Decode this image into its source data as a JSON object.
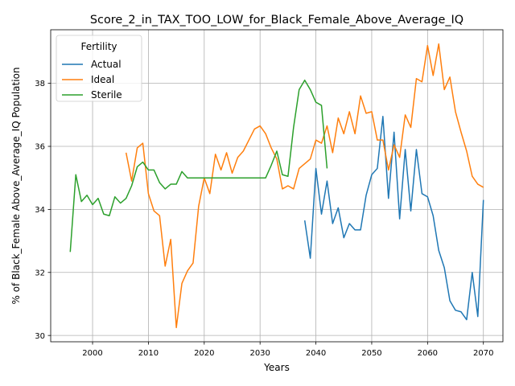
{
  "chart_data": {
    "type": "line",
    "title": "Score_2_in_TAX_TOO_LOW_for_Black_Female_Above_Average_IQ",
    "xlabel": "Years",
    "ylabel": "% of Black_Female Above_Average_IQ Population",
    "xlim": [
      1992.5,
      2073.5
    ],
    "ylim": [
      29.8,
      39.7
    ],
    "xticks": [
      2000,
      2010,
      2020,
      2030,
      2040,
      2050,
      2060,
      2070
    ],
    "yticks": [
      30,
      32,
      34,
      36,
      38
    ],
    "grid": true,
    "legend": {
      "title": "Fertility",
      "placement": "top-left"
    },
    "series": [
      {
        "name": "Actual",
        "color": "#1f77b4",
        "x": [
          2038,
          2039,
          2040,
          2041,
          2042,
          2043,
          2044,
          2045,
          2046,
          2047,
          2048,
          2049,
          2050,
          2051,
          2052,
          2053,
          2054,
          2055,
          2056,
          2057,
          2058,
          2059,
          2060,
          2061,
          2062,
          2063,
          2064,
          2065,
          2066,
          2067,
          2068,
          2069,
          2070
        ],
        "y": [
          33.65,
          32.45,
          35.3,
          33.85,
          34.9,
          33.55,
          34.05,
          33.1,
          33.55,
          33.35,
          33.35,
          34.45,
          35.1,
          35.3,
          36.95,
          34.35,
          36.45,
          33.7,
          35.9,
          33.95,
          35.9,
          34.5,
          34.4,
          33.8,
          32.7,
          32.15,
          31.1,
          30.8,
          30.75,
          30.5,
          32.0,
          30.6,
          34.3
        ]
      },
      {
        "name": "Ideal",
        "color": "#ff7f0e",
        "x": [
          2006,
          2007,
          2008,
          2009,
          2010,
          2011,
          2012,
          2013,
          2014,
          2015,
          2016,
          2017,
          2018,
          2019,
          2020,
          2021,
          2022,
          2023,
          2024,
          2025,
          2026,
          2027,
          2028,
          2029,
          2030,
          2031,
          2032,
          2033,
          2034,
          2035,
          2036,
          2037,
          2038,
          2039,
          2040,
          2041,
          2042,
          2043,
          2044,
          2045,
          2046,
          2047,
          2048,
          2049,
          2050,
          2051,
          2052,
          2053,
          2054,
          2055,
          2056,
          2057,
          2058,
          2059,
          2060,
          2061,
          2062,
          2063,
          2064,
          2065,
          2066,
          2067,
          2068,
          2069,
          2070
        ],
        "y": [
          35.8,
          34.9,
          35.95,
          36.1,
          34.5,
          33.95,
          33.8,
          32.2,
          33.05,
          30.25,
          31.65,
          32.05,
          32.3,
          34.1,
          35.0,
          34.5,
          35.75,
          35.25,
          35.8,
          35.15,
          35.65,
          35.85,
          36.2,
          36.55,
          36.65,
          36.4,
          35.95,
          35.6,
          34.65,
          34.75,
          34.65,
          35.3,
          35.45,
          35.6,
          36.2,
          36.1,
          36.65,
          35.8,
          36.9,
          36.4,
          37.1,
          36.4,
          37.6,
          37.05,
          37.1,
          36.2,
          36.2,
          35.25,
          36.05,
          35.65,
          37.0,
          36.6,
          38.15,
          38.05,
          39.2,
          38.25,
          39.25,
          37.8,
          38.2,
          37.1,
          36.45,
          35.85,
          35.05,
          34.8,
          34.7
        ]
      },
      {
        "name": "Sterile",
        "color": "#2ca02c",
        "x": [
          1996,
          1997,
          1998,
          1999,
          2000,
          2001,
          2002,
          2003,
          2004,
          2005,
          2006,
          2007,
          2008,
          2009,
          2010,
          2011,
          2012,
          2013,
          2014,
          2015,
          2016,
          2017,
          2018,
          2019,
          2020,
          2021,
          2022,
          2023,
          2024,
          2025,
          2026,
          2027,
          2028,
          2029,
          2030,
          2031,
          2032,
          2033,
          2034,
          2035,
          2036,
          2037,
          2038,
          2039,
          2040,
          2041,
          2042
        ],
        "y": [
          32.65,
          35.1,
          34.25,
          34.45,
          34.15,
          34.35,
          33.85,
          33.8,
          34.4,
          34.2,
          34.35,
          34.75,
          35.35,
          35.5,
          35.25,
          35.25,
          34.85,
          34.65,
          34.8,
          34.8,
          35.2,
          35.0,
          35.0,
          35.0,
          35.0,
          35.0,
          35.0,
          35.0,
          35.0,
          35.0,
          35.0,
          35.0,
          35.0,
          35.0,
          35.0,
          35.0,
          35.4,
          35.85,
          35.1,
          35.05,
          36.6,
          37.8,
          38.1,
          37.8,
          37.4,
          37.3,
          35.3
        ]
      }
    ]
  }
}
